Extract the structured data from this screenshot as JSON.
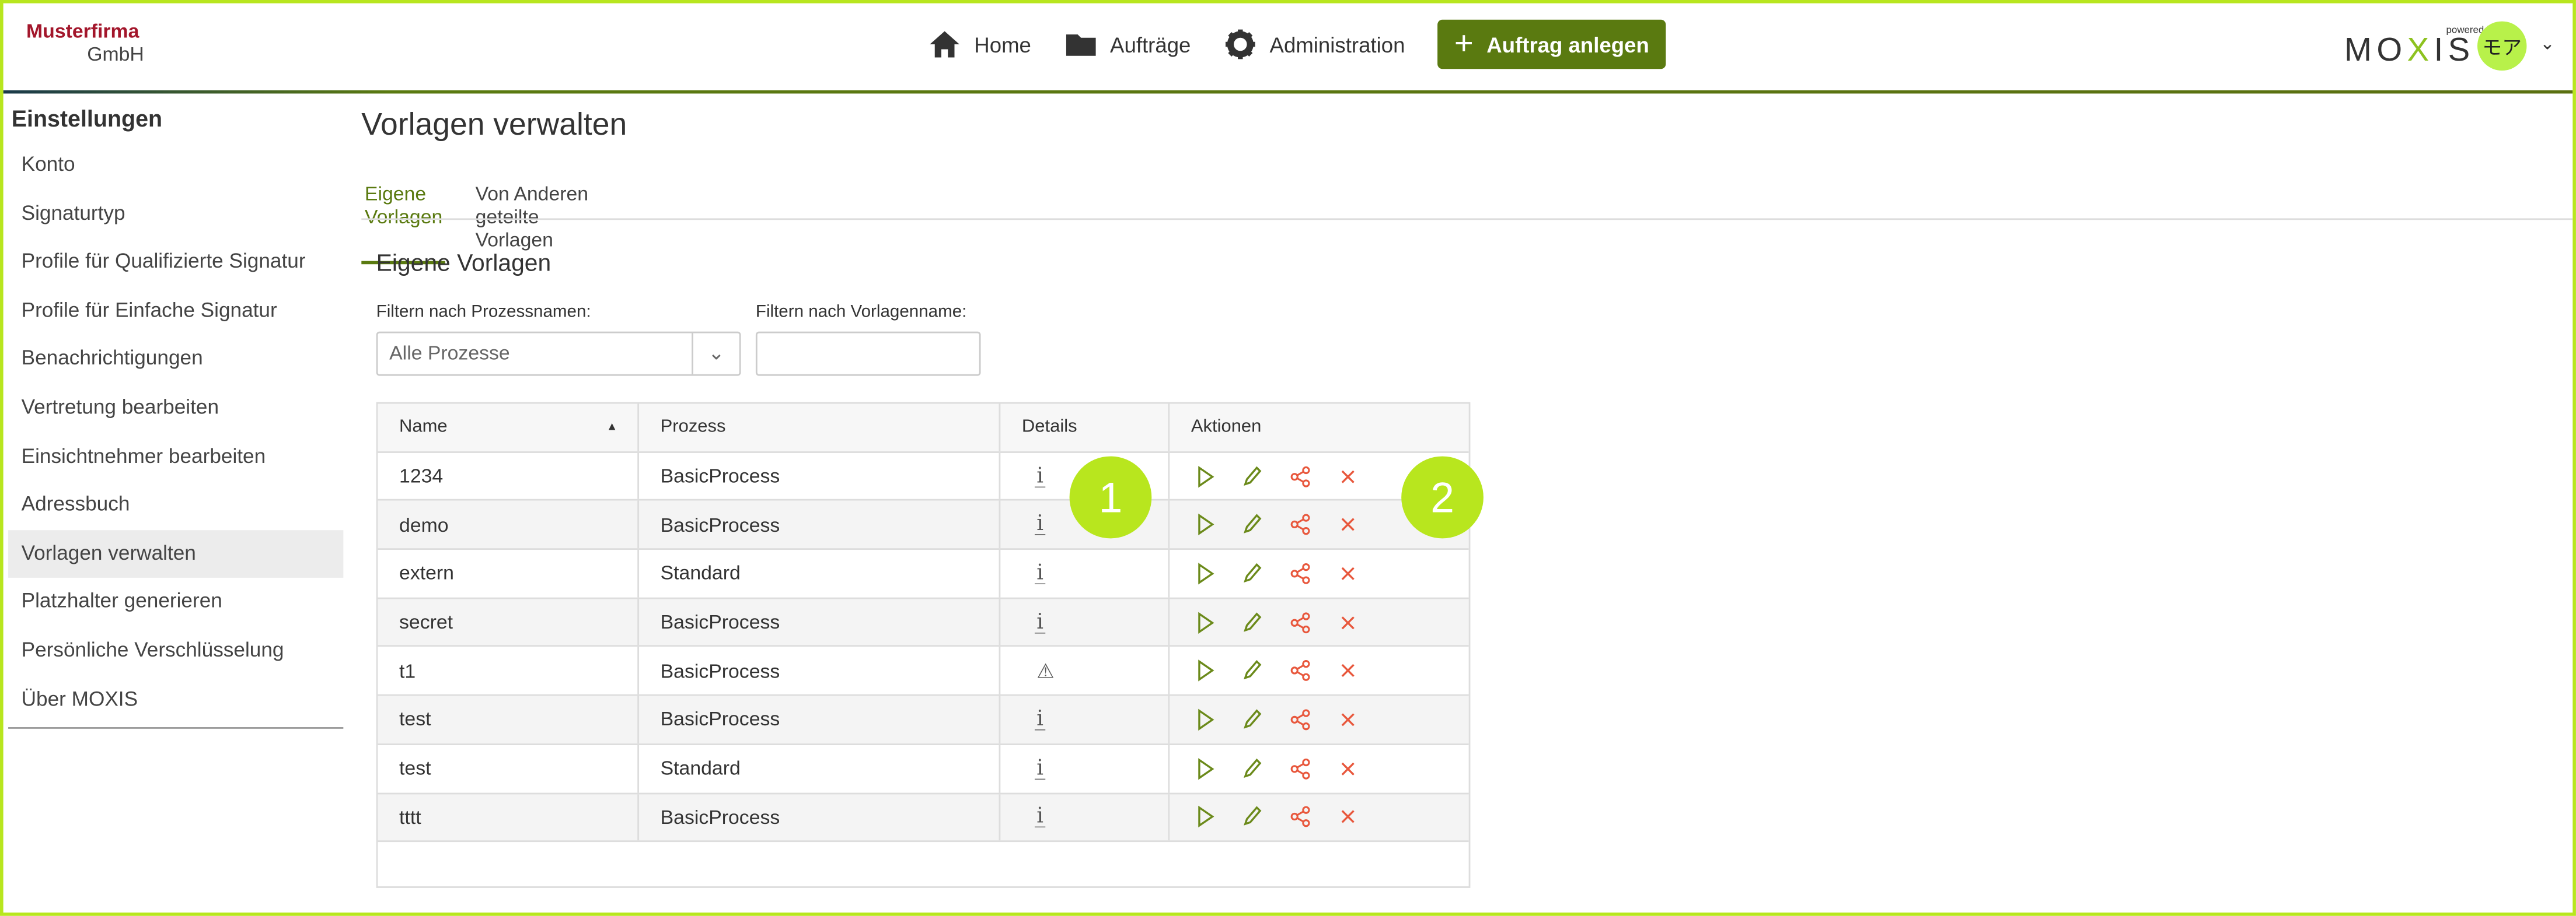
{
  "header": {
    "logo_line1": "Musterfirma",
    "logo_line2": "GmbH",
    "nav": [
      {
        "label": "Home",
        "icon": "home-icon"
      },
      {
        "label": "Aufträge",
        "icon": "folder-icon"
      },
      {
        "label": "Administration",
        "icon": "gear-icon"
      }
    ],
    "new_order_label": "Auftrag anlegen",
    "brand_powered": "powered by",
    "brand_name_a": "MO",
    "brand_name_x": "X",
    "brand_name_b": "IS",
    "avatar_initials": "モア",
    "accent": "#b8e61e",
    "primary": "#5a7a10"
  },
  "sidebar": {
    "title": "Einstellungen",
    "items": [
      "Konto",
      "Signaturtyp",
      "Profile für Qualifizierte Signatur",
      "Profile für Einfache Signatur",
      "Benachrichtigungen",
      "Vertretung bearbeiten",
      "Einsichtnehmer bearbeiten",
      "Adressbuch",
      "Vorlagen verwalten",
      "Platzhalter generieren",
      "Persönliche Verschlüsselung",
      "Über MOXIS"
    ],
    "active": "Vorlagen verwalten"
  },
  "main": {
    "title": "Vorlagen verwalten",
    "tabs": [
      "Eigene Vorlagen",
      "Von Anderen geteilte Vorlagen"
    ],
    "section_title": "Eigene Vorlagen",
    "filter_process_label": "Filtern nach Prozessnamen:",
    "filter_process_value": "Alle Prozesse",
    "filter_name_label": "Filtern nach Vorlagenname:",
    "filter_name_value": "",
    "table": {
      "headers": [
        "Name",
        "Prozess",
        "Details",
        "Aktionen"
      ],
      "rows": [
        {
          "name": "1234",
          "process": "BasicProcess",
          "details": "info"
        },
        {
          "name": "demo",
          "process": "BasicProcess",
          "details": "info"
        },
        {
          "name": "extern",
          "process": "Standard",
          "details": "info"
        },
        {
          "name": "secret",
          "process": "BasicProcess",
          "details": "info"
        },
        {
          "name": "t1",
          "process": "BasicProcess",
          "details": "warning"
        },
        {
          "name": "test",
          "process": "BasicProcess",
          "details": "info"
        },
        {
          "name": "test",
          "process": "Standard",
          "details": "info"
        },
        {
          "name": "tttt",
          "process": "BasicProcess",
          "details": "info"
        }
      ]
    }
  },
  "callouts": [
    "1",
    "2"
  ]
}
